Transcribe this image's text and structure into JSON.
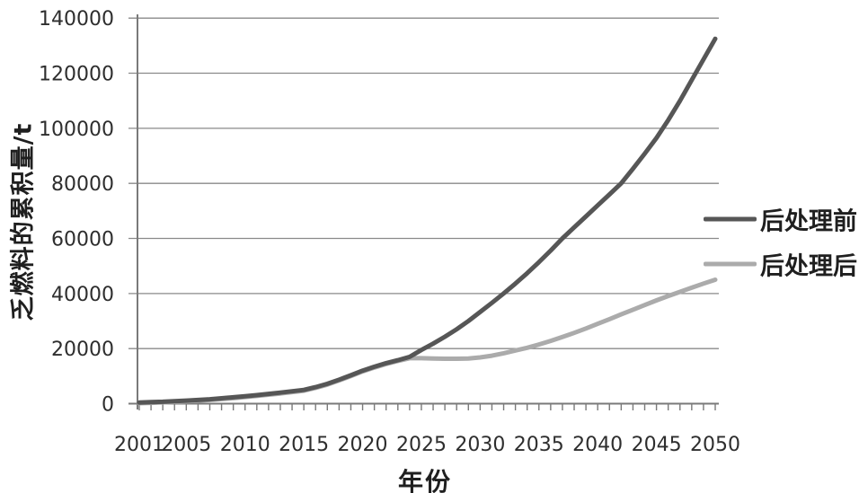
{
  "figure": {
    "background": "#ffffff",
    "text_color": "#2e2e2e"
  },
  "chart_data": {
    "type": "line",
    "title": "",
    "xlabel": "年份",
    "ylabel": "乏燃料的累积量/t",
    "xlim": [
      2001,
      2050
    ],
    "ylim": [
      0,
      140000
    ],
    "grid": "horizontal-only",
    "grid_color": "#8a8a8a",
    "axis_color": "#7a7a7a",
    "tick_text_color": "#2e2e2e",
    "minor_xticks_every_year": true,
    "yticks": [
      0,
      20000,
      40000,
      60000,
      80000,
      100000,
      120000,
      140000
    ],
    "xticks": [
      2001,
      2005,
      2010,
      2015,
      2020,
      2025,
      2030,
      2035,
      2040,
      2045,
      2050
    ],
    "legend_position": "right",
    "series": [
      {
        "name": "后处理前",
        "color": "#565656",
        "width": 5,
        "points": [
          [
            2001,
            400
          ],
          [
            2002,
            550
          ],
          [
            2003,
            700
          ],
          [
            2004,
            900
          ],
          [
            2005,
            1100
          ],
          [
            2006,
            1350
          ],
          [
            2007,
            1600
          ],
          [
            2008,
            1950
          ],
          [
            2009,
            2300
          ],
          [
            2010,
            2700
          ],
          [
            2011,
            3100
          ],
          [
            2012,
            3550
          ],
          [
            2013,
            4000
          ],
          [
            2014,
            4500
          ],
          [
            2015,
            5000
          ],
          [
            2016,
            6000
          ],
          [
            2017,
            7200
          ],
          [
            2018,
            8700
          ],
          [
            2019,
            10300
          ],
          [
            2020,
            12000
          ],
          [
            2021,
            13400
          ],
          [
            2022,
            14700
          ],
          [
            2023,
            15800
          ],
          [
            2024,
            17000
          ],
          [
            2025,
            19500
          ],
          [
            2026,
            21800
          ],
          [
            2027,
            24300
          ],
          [
            2028,
            27000
          ],
          [
            2029,
            30000
          ],
          [
            2030,
            33300
          ],
          [
            2031,
            36600
          ],
          [
            2032,
            40000
          ],
          [
            2033,
            43600
          ],
          [
            2034,
            47400
          ],
          [
            2035,
            51400
          ],
          [
            2036,
            55600
          ],
          [
            2037,
            60000
          ],
          [
            2038,
            64000
          ],
          [
            2039,
            68000
          ],
          [
            2040,
            72000
          ],
          [
            2041,
            76000
          ],
          [
            2042,
            80000
          ],
          [
            2043,
            85300
          ],
          [
            2044,
            90800
          ],
          [
            2045,
            96500
          ],
          [
            2046,
            103000
          ],
          [
            2047,
            110000
          ],
          [
            2048,
            117500
          ],
          [
            2049,
            125000
          ],
          [
            2050,
            132500
          ]
        ]
      },
      {
        "name": "后处理后",
        "color": "#ababab",
        "width": 5,
        "points": [
          [
            2001,
            150
          ],
          [
            2002,
            300
          ],
          [
            2003,
            450
          ],
          [
            2004,
            650
          ],
          [
            2005,
            850
          ],
          [
            2006,
            1100
          ],
          [
            2007,
            1350
          ],
          [
            2008,
            1650
          ],
          [
            2009,
            2000
          ],
          [
            2010,
            2400
          ],
          [
            2011,
            2800
          ],
          [
            2012,
            3250
          ],
          [
            2013,
            3700
          ],
          [
            2014,
            4200
          ],
          [
            2015,
            4700
          ],
          [
            2016,
            5700
          ],
          [
            2017,
            6900
          ],
          [
            2018,
            8400
          ],
          [
            2019,
            10000
          ],
          [
            2020,
            11700
          ],
          [
            2021,
            13100
          ],
          [
            2022,
            14400
          ],
          [
            2023,
            15500
          ],
          [
            2024,
            16500
          ],
          [
            2025,
            16500
          ],
          [
            2026,
            16400
          ],
          [
            2027,
            16300
          ],
          [
            2028,
            16300
          ],
          [
            2029,
            16400
          ],
          [
            2030,
            16800
          ],
          [
            2031,
            17400
          ],
          [
            2032,
            18300
          ],
          [
            2033,
            19300
          ],
          [
            2034,
            20300
          ],
          [
            2035,
            21500
          ],
          [
            2036,
            22800
          ],
          [
            2037,
            24200
          ],
          [
            2038,
            25700
          ],
          [
            2039,
            27300
          ],
          [
            2040,
            29000
          ],
          [
            2041,
            30700
          ],
          [
            2042,
            32400
          ],
          [
            2043,
            34100
          ],
          [
            2044,
            35800
          ],
          [
            2045,
            37500
          ],
          [
            2046,
            39100
          ],
          [
            2047,
            40600
          ],
          [
            2048,
            42100
          ],
          [
            2049,
            43600
          ],
          [
            2050,
            45000
          ]
        ]
      }
    ]
  }
}
